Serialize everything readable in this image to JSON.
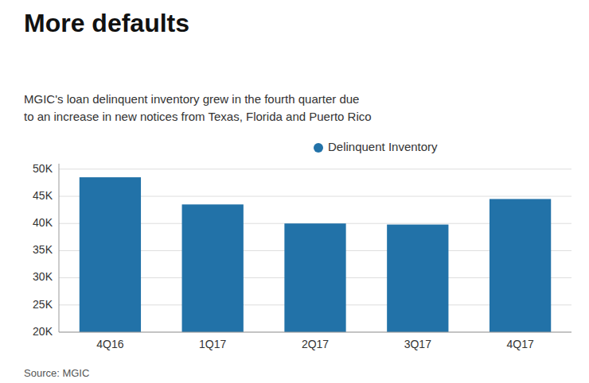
{
  "chart_data": {
    "type": "bar",
    "title": "More defaults",
    "subtitle": "MGIC's loan delinquent inventory grew in the fourth quarter due\nto an increase in new notices from Texas, Florida and Puerto Rico",
    "source": "Source: MGIC",
    "categories": [
      "4Q16",
      "1Q17",
      "2Q17",
      "3Q17",
      "4Q17"
    ],
    "series": [
      {
        "name": "Delinquent Inventory",
        "color": "#2272a8",
        "values": [
          48500,
          43500,
          40000,
          39800,
          44500
        ]
      }
    ],
    "ylim": [
      20000,
      51000
    ],
    "yticks": [
      {
        "value": 20000,
        "label": "20K"
      },
      {
        "value": 25000,
        "label": "25K"
      },
      {
        "value": 30000,
        "label": "30K"
      },
      {
        "value": 35000,
        "label": "35K"
      },
      {
        "value": 40000,
        "label": "40K"
      },
      {
        "value": 45000,
        "label": "45K"
      },
      {
        "value": 50000,
        "label": "50K"
      }
    ],
    "grid": true,
    "legend": "top"
  }
}
